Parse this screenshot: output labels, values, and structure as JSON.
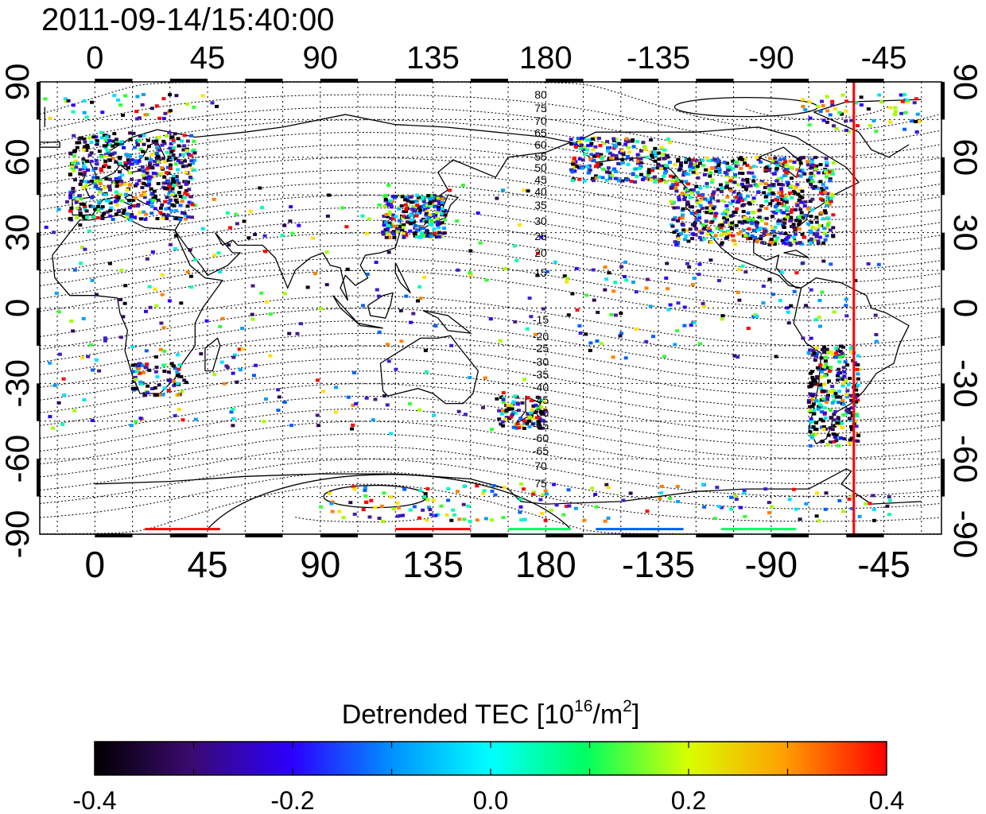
{
  "timestamp": "2011-09-14/15:40:00",
  "map": {
    "longitude_ticks": [
      "0",
      "45",
      "90",
      "135",
      "180",
      "-135",
      "-90",
      "-45"
    ],
    "latitude_ticks_left": [
      "90",
      "60",
      "30",
      "0",
      "-30",
      "-60",
      "-90"
    ],
    "latitude_ticks_right": [
      "90",
      "60",
      "30",
      "0",
      "-30",
      "-60",
      "-90"
    ],
    "contour_labels_north": [
      "80",
      "75",
      "70",
      "65",
      "60",
      "55",
      "50",
      "45",
      "40",
      "35",
      "30",
      "25",
      "20",
      "15"
    ],
    "contour_labels_south": [
      "-15",
      "-20",
      "-25",
      "-30",
      "-35",
      "-40",
      "-45",
      "-50",
      "-55",
      "-60",
      "-65",
      "70",
      "75"
    ],
    "marker_line_longitude": -57,
    "marker_line_color": "#ff0000"
  },
  "colorbar": {
    "title_prefix": "Detrended TEC  [10",
    "title_exp1": "16",
    "title_mid": "/m",
    "title_exp2": "2",
    "title_suffix": "]",
    "min": -0.4,
    "max": 0.4,
    "tick_labels": [
      "-0.4",
      "-0.2",
      "0.0",
      "0.2",
      "0.4"
    ],
    "colors": [
      "#000000",
      "#3a0a6e",
      "#2b00ff",
      "#0096ff",
      "#00ffff",
      "#00ff60",
      "#d8ff00",
      "#ffa000",
      "#ff0000"
    ]
  }
}
